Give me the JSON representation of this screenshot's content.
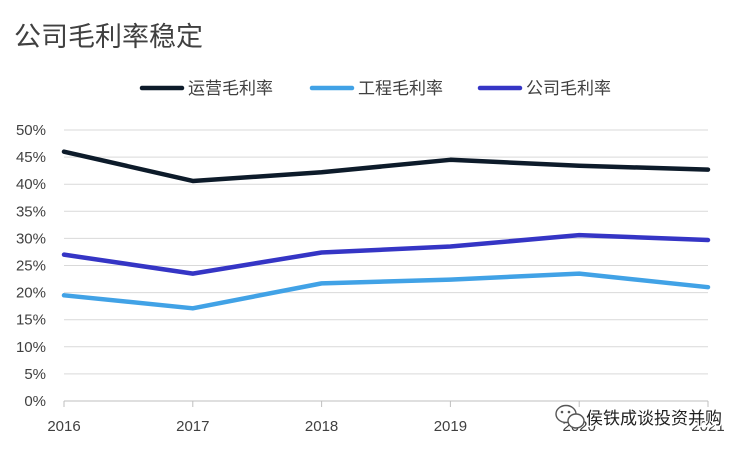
{
  "chart_data": {
    "type": "line",
    "title": "公司毛利率稳定",
    "xlabel": "",
    "ylabel": "",
    "x": [
      "2016",
      "2017",
      "2018",
      "2019",
      "2020",
      "2021"
    ],
    "ylim": [
      0,
      50
    ],
    "yticks": [
      "0%",
      "5%",
      "10%",
      "15%",
      "20%",
      "25%",
      "30%",
      "35%",
      "40%",
      "45%",
      "50%"
    ],
    "grid": true,
    "legend_position": "top",
    "series": [
      {
        "name": "运营毛利率",
        "color": "#0d1b2a",
        "values": [
          46.0,
          40.6,
          42.2,
          44.5,
          43.4,
          42.7
        ]
      },
      {
        "name": "工程毛利率",
        "color": "#41a2e6",
        "values": [
          19.5,
          17.1,
          21.7,
          22.4,
          23.5,
          21.0
        ]
      },
      {
        "name": "公司毛利率",
        "color": "#3535c5",
        "values": [
          27.0,
          23.5,
          27.4,
          28.5,
          30.6,
          29.7
        ]
      }
    ]
  },
  "watermark": {
    "text": "侯铁成谈投资并购",
    "icon": "wechat-bubble-icon"
  }
}
